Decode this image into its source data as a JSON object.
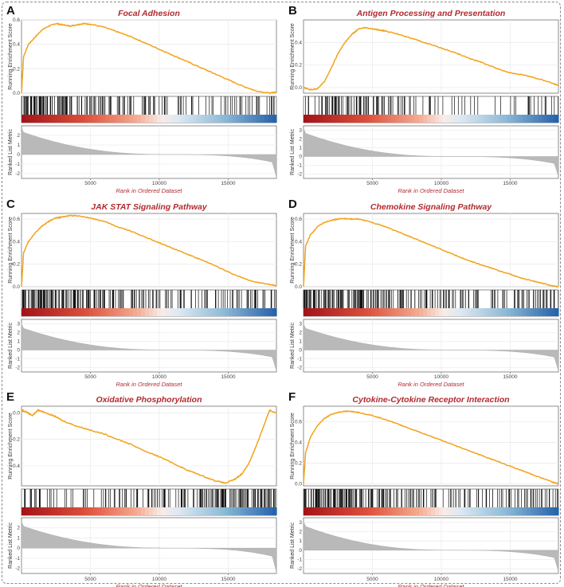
{
  "figure": {
    "description_free": true
  },
  "chart_data": [
    {
      "type": "line",
      "panel": "A",
      "title": "Focal Adhesion",
      "ylabel": "Running Enrichment Score",
      "metric_label": "Ranked List Metric",
      "xlabel": "Rank in Ordered Dataset",
      "xlim": [
        0,
        18500
      ],
      "ylim": [
        0,
        0.6
      ],
      "y_ticks": [
        0.0,
        0.2,
        0.4,
        0.6
      ],
      "y_tick_labels": [
        "0.0",
        "0.2",
        "0.4",
        "0.6"
      ],
      "x_ticks": [
        5000,
        10000,
        15000
      ],
      "metric_ticks": [
        2,
        1,
        0,
        -1,
        -2
      ],
      "metric_range": [
        -2.5,
        3
      ],
      "x": [
        0,
        150,
        500,
        1000,
        1500,
        2000,
        2500,
        3000,
        3500,
        4000,
        4500,
        5000,
        6000,
        7000,
        8000,
        9000,
        10000,
        11000,
        12000,
        13000,
        14000,
        15000,
        16000,
        17000,
        18000,
        18500
      ],
      "es": [
        0.0,
        0.3,
        0.4,
        0.46,
        0.52,
        0.55,
        0.57,
        0.56,
        0.55,
        0.56,
        0.57,
        0.565,
        0.54,
        0.5,
        0.46,
        0.41,
        0.36,
        0.31,
        0.26,
        0.21,
        0.16,
        0.11,
        0.06,
        0.02,
        0.0,
        0.01
      ],
      "hit_density": [
        0.9,
        0.85,
        0.8,
        0.7,
        0.55,
        0.5,
        0.45,
        0.4,
        0.3,
        0.3,
        0.25,
        0.25,
        0.2,
        0.2,
        0.25,
        0.3,
        0.3,
        0.35
      ],
      "metric_start": 2.8,
      "metric_end": -2.4
    },
    {
      "type": "line",
      "panel": "B",
      "title": "Antigen Processing and Presentation",
      "ylabel": "Running Enrichment Score",
      "metric_label": "Ranked List Metric",
      "xlabel": "Rank in Ordered Dataset",
      "xlim": [
        0,
        18500
      ],
      "ylim": [
        -0.05,
        0.6
      ],
      "y_ticks": [
        0.0,
        0.2,
        0.4
      ],
      "y_tick_labels": [
        "0.0",
        "0.2",
        "0.4"
      ],
      "x_ticks": [
        5000,
        10000,
        15000
      ],
      "metric_ticks": [
        3,
        2,
        1,
        0,
        -1,
        -2
      ],
      "metric_range": [
        -2.5,
        3.5
      ],
      "x": [
        0,
        500,
        1000,
        1500,
        2000,
        2500,
        3000,
        3500,
        4000,
        4500,
        5000,
        5500,
        6000,
        7000,
        8000,
        9000,
        10000,
        11000,
        12000,
        13000,
        14000,
        15000,
        16000,
        17000,
        18000,
        18500
      ],
      "es": [
        0.0,
        -0.02,
        -0.01,
        0.05,
        0.17,
        0.3,
        0.4,
        0.47,
        0.52,
        0.53,
        0.52,
        0.51,
        0.5,
        0.47,
        0.43,
        0.39,
        0.35,
        0.31,
        0.26,
        0.22,
        0.17,
        0.13,
        0.11,
        0.08,
        0.04,
        0.02
      ],
      "hit_density": [
        0.2,
        0.6,
        0.7,
        0.65,
        0.5,
        0.45,
        0.35,
        0.3,
        0.2,
        0.2,
        0.15,
        0.15,
        0.1,
        0.1,
        0.15,
        0.15,
        0.2,
        0.25
      ],
      "metric_start": 3.2,
      "metric_end": -2.3
    },
    {
      "type": "line",
      "panel": "C",
      "title": "JAK STAT Signaling Pathway",
      "ylabel": "Running Enrichment Score",
      "metric_label": "Ranked List Metric",
      "xlabel": "Rank in Ordered Dataset",
      "xlim": [
        0,
        18500
      ],
      "ylim": [
        0,
        0.65
      ],
      "y_ticks": [
        0.0,
        0.2,
        0.4,
        0.6
      ],
      "y_tick_labels": [
        "0.0",
        "0.2",
        "0.4",
        "0.6"
      ],
      "x_ticks": [
        5000,
        10000,
        15000
      ],
      "metric_ticks": [
        3,
        2,
        1,
        0,
        -1,
        -2
      ],
      "metric_range": [
        -2.5,
        3.5
      ],
      "x": [
        0,
        150,
        500,
        1000,
        1500,
        2000,
        2500,
        3000,
        3500,
        4000,
        5000,
        6000,
        7000,
        8000,
        9000,
        10000,
        11000,
        12000,
        13000,
        14000,
        15000,
        16000,
        17000,
        18000,
        18500
      ],
      "es": [
        0.0,
        0.3,
        0.4,
        0.48,
        0.54,
        0.58,
        0.61,
        0.62,
        0.63,
        0.63,
        0.61,
        0.58,
        0.53,
        0.49,
        0.44,
        0.39,
        0.34,
        0.29,
        0.24,
        0.19,
        0.13,
        0.08,
        0.04,
        0.02,
        0.01
      ],
      "hit_density": [
        0.95,
        0.9,
        0.85,
        0.8,
        0.7,
        0.6,
        0.55,
        0.45,
        0.4,
        0.35,
        0.3,
        0.3,
        0.25,
        0.25,
        0.3,
        0.3,
        0.35,
        0.4
      ],
      "metric_start": 3.0,
      "metric_end": -2.4
    },
    {
      "type": "line",
      "panel": "D",
      "title": "Chemokine Signaling Pathway",
      "ylabel": "Running Enrichment Score",
      "metric_label": "Ranked List Metric",
      "xlabel": "Rank in Ordered Dataset",
      "xlim": [
        0,
        18500
      ],
      "ylim": [
        0,
        0.65
      ],
      "y_ticks": [
        0.0,
        0.2,
        0.4,
        0.6
      ],
      "y_tick_labels": [
        "0.0",
        "0.2",
        "0.4",
        "0.6"
      ],
      "x_ticks": [
        5000,
        10000,
        15000
      ],
      "metric_ticks": [
        3,
        2,
        1,
        0,
        -1,
        -2
      ],
      "metric_range": [
        -2.5,
        3.5
      ],
      "x": [
        0,
        150,
        500,
        1000,
        1500,
        2000,
        2500,
        3000,
        3500,
        4000,
        5000,
        6000,
        7000,
        8000,
        9000,
        10000,
        11000,
        12000,
        13000,
        14000,
        15000,
        16000,
        17000,
        18000,
        18500
      ],
      "es": [
        0.0,
        0.36,
        0.46,
        0.53,
        0.57,
        0.59,
        0.6,
        0.605,
        0.6,
        0.6,
        0.57,
        0.53,
        0.48,
        0.43,
        0.38,
        0.33,
        0.28,
        0.23,
        0.19,
        0.15,
        0.11,
        0.07,
        0.04,
        0.01,
        0.0
      ],
      "hit_density": [
        0.95,
        0.9,
        0.85,
        0.8,
        0.75,
        0.65,
        0.55,
        0.5,
        0.45,
        0.4,
        0.35,
        0.35,
        0.3,
        0.3,
        0.35,
        0.4,
        0.45,
        0.5
      ],
      "metric_start": 3.0,
      "metric_end": -2.4
    },
    {
      "type": "line",
      "panel": "E",
      "title": "Oxidative Phosphorylation",
      "ylabel": "Running Enrichment Score",
      "metric_label": "Ranked List Metric",
      "xlabel": "Rank in Ordered Dataset",
      "xlim": [
        0,
        18500
      ],
      "ylim": [
        -0.55,
        0.05
      ],
      "y_ticks": [
        0.0,
        -0.2,
        -0.4
      ],
      "y_tick_labels": [
        "0.0",
        "-0.2",
        "-0.4"
      ],
      "x_ticks": [
        5000,
        10000,
        15000
      ],
      "metric_ticks": [
        2,
        1,
        0,
        -1,
        -2
      ],
      "metric_range": [
        -2.5,
        3
      ],
      "x": [
        0,
        300,
        800,
        1200,
        1800,
        2500,
        3000,
        4000,
        5000,
        6000,
        7000,
        8000,
        9000,
        10000,
        11000,
        12000,
        13000,
        14000,
        14800,
        15500,
        16000,
        16500,
        17000,
        17500,
        18000,
        18500
      ],
      "es": [
        0.02,
        0.01,
        -0.02,
        0.02,
        0.0,
        -0.03,
        -0.06,
        -0.1,
        -0.13,
        -0.16,
        -0.2,
        -0.24,
        -0.29,
        -0.33,
        -0.38,
        -0.43,
        -0.47,
        -0.51,
        -0.53,
        -0.5,
        -0.46,
        -0.38,
        -0.26,
        -0.12,
        0.02,
        0.0
      ],
      "hit_density": [
        0.3,
        0.25,
        0.2,
        0.2,
        0.2,
        0.25,
        0.25,
        0.3,
        0.35,
        0.35,
        0.4,
        0.45,
        0.55,
        0.7,
        0.85,
        0.9,
        0.85,
        0.7
      ],
      "metric_start": 2.6,
      "metric_end": -2.4
    },
    {
      "type": "line",
      "panel": "F",
      "title": "Cytokine-Cytokine Receptor Interaction",
      "ylabel": "Running Enrichment Score",
      "metric_label": "Ranked List Metric",
      "xlabel": "Rank in Ordered Dataset",
      "xlim": [
        0,
        18500
      ],
      "ylim": [
        -0.02,
        0.75
      ],
      "y_ticks": [
        0.0,
        0.2,
        0.4,
        0.6
      ],
      "y_tick_labels": [
        "0.0",
        "0.2",
        "0.4",
        "0.6"
      ],
      "x_ticks": [
        5000,
        10000,
        15000
      ],
      "metric_ticks": [
        3,
        2,
        1,
        0,
        -1,
        -2
      ],
      "metric_range": [
        -2.5,
        3.5
      ],
      "x": [
        0,
        150,
        500,
        1000,
        1500,
        2000,
        2500,
        3000,
        3500,
        4000,
        5000,
        6000,
        7000,
        8000,
        9000,
        10000,
        11000,
        12000,
        13000,
        14000,
        15000,
        16000,
        17000,
        18000,
        18500
      ],
      "es": [
        0.0,
        0.3,
        0.45,
        0.56,
        0.63,
        0.67,
        0.69,
        0.7,
        0.7,
        0.69,
        0.66,
        0.62,
        0.57,
        0.52,
        0.47,
        0.42,
        0.37,
        0.32,
        0.27,
        0.22,
        0.17,
        0.12,
        0.07,
        0.02,
        0.0
      ],
      "hit_density": [
        1.0,
        0.95,
        0.9,
        0.85,
        0.75,
        0.6,
        0.5,
        0.45,
        0.4,
        0.35,
        0.3,
        0.3,
        0.25,
        0.25,
        0.3,
        0.35,
        0.4,
        0.45
      ],
      "metric_start": 3.1,
      "metric_end": -2.3
    }
  ],
  "colors": {
    "es_line": "#f2a31c",
    "title": "#b22a2e",
    "metric_fill": "#b9b9b9",
    "gridline": "#ececec",
    "hit_line": "#111111"
  }
}
